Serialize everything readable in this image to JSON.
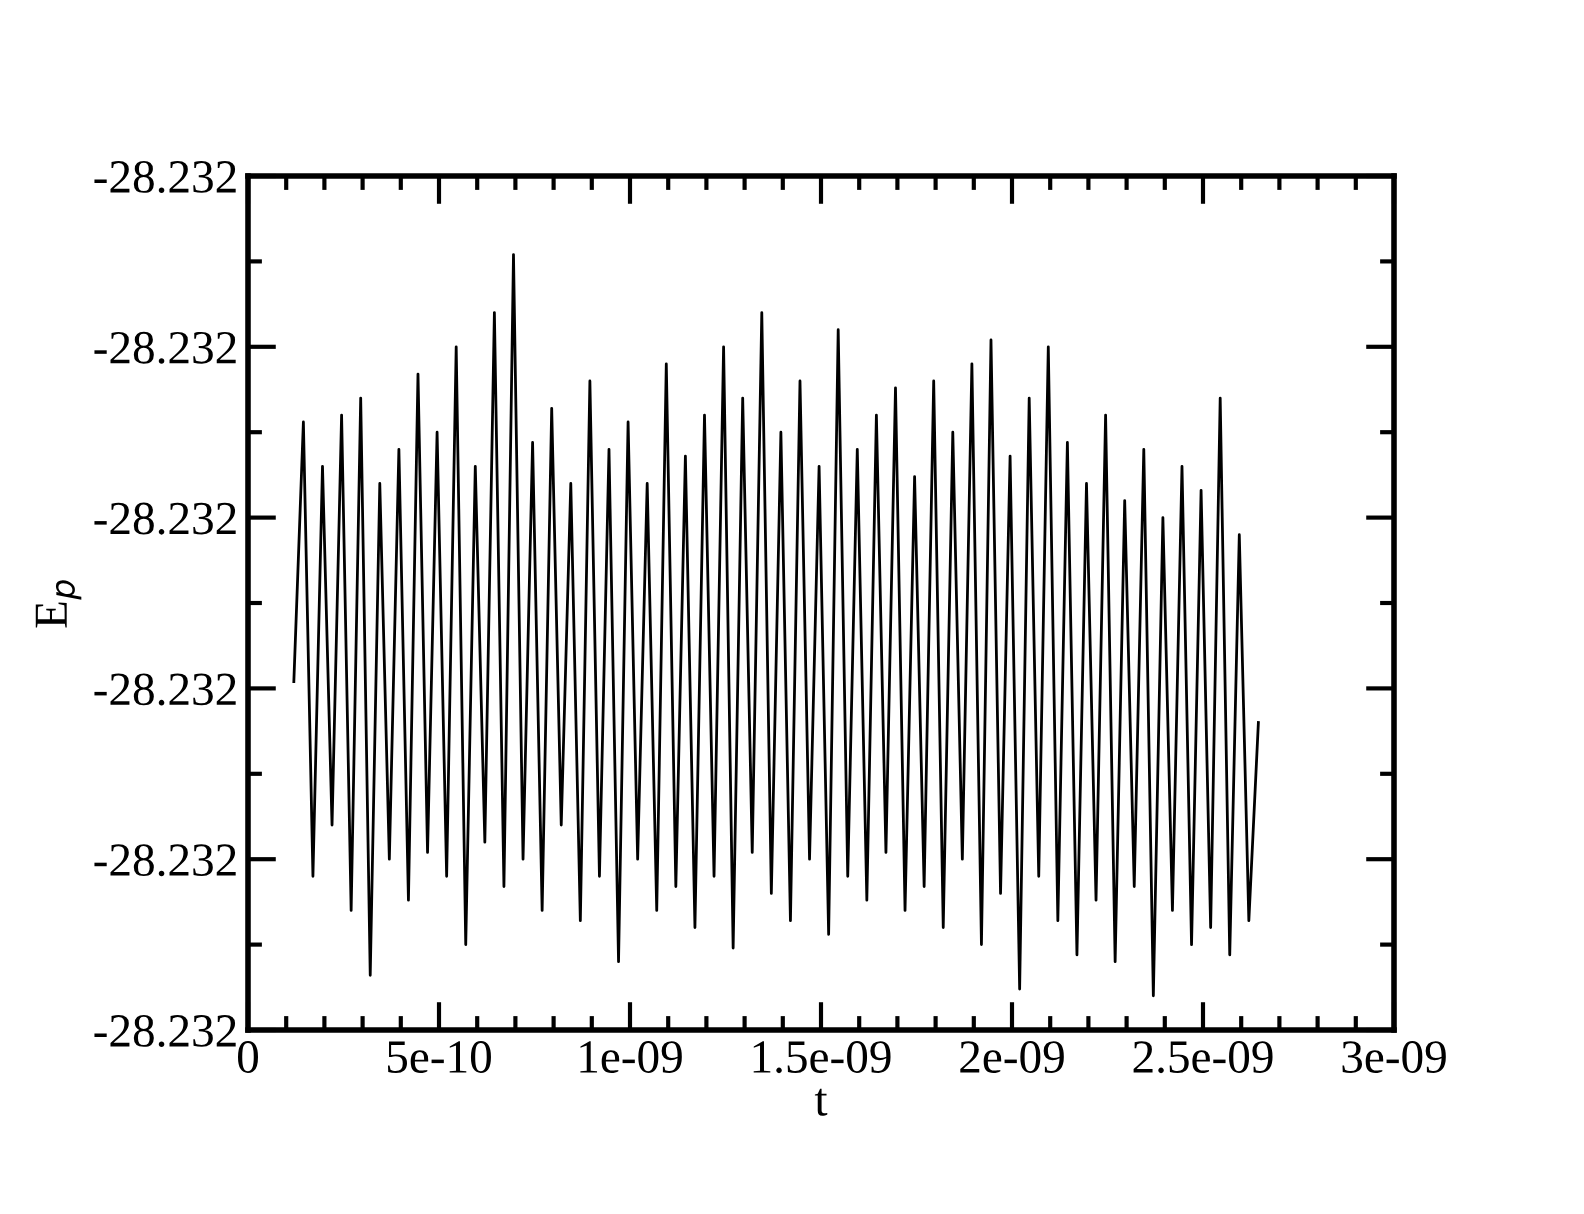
{
  "chart_data": {
    "type": "line",
    "xlabel": "t",
    "ylabel": "E$_{p}$",
    "x": [
      1.2e-10,
      1.45e-10,
      1.7e-10,
      1.95e-10,
      2.2e-10,
      2.45e-10,
      2.7e-10,
      2.95e-10,
      3.2e-10,
      3.45e-10,
      3.7e-10,
      3.95e-10,
      4.2e-10,
      4.45e-10,
      4.7e-10,
      4.95e-10,
      5.2e-10,
      5.45e-10,
      5.7e-10,
      5.95e-10,
      6.2e-10,
      6.45e-10,
      6.7e-10,
      6.95e-10,
      7.2e-10,
      7.45e-10,
      7.7e-10,
      7.95e-10,
      8.2e-10,
      8.45e-10,
      8.7e-10,
      8.95e-10,
      9.2e-10,
      9.45e-10,
      9.7e-10,
      9.95e-10,
      1.02e-09,
      1.045e-09,
      1.07e-09,
      1.095e-09,
      1.12e-09,
      1.145e-09,
      1.17e-09,
      1.195e-09,
      1.22e-09,
      1.245e-09,
      1.27e-09,
      1.295e-09,
      1.32e-09,
      1.345e-09,
      1.37e-09,
      1.395e-09,
      1.42e-09,
      1.445e-09,
      1.47e-09,
      1.495e-09,
      1.52e-09,
      1.545e-09,
      1.57e-09,
      1.595e-09,
      1.62e-09,
      1.645e-09,
      1.67e-09,
      1.695e-09,
      1.72e-09,
      1.745e-09,
      1.77e-09,
      1.795e-09,
      1.82e-09,
      1.845e-09,
      1.87e-09,
      1.895e-09,
      1.92e-09,
      1.945e-09,
      1.97e-09,
      1.995e-09,
      2.02e-09,
      2.045e-09,
      2.07e-09,
      2.095e-09,
      2.12e-09,
      2.145e-09,
      2.17e-09,
      2.195e-09,
      2.22e-09,
      2.245e-09,
      2.27e-09,
      2.295e-09,
      2.32e-09,
      2.345e-09,
      2.37e-09,
      2.395e-09,
      2.42e-09,
      2.445e-09,
      2.47e-09,
      2.495e-09,
      2.52e-09,
      2.545e-09,
      2.57e-09,
      2.595e-09,
      2.62e-09,
      2.645e-09
    ],
    "series": [
      {
        "color": "#000000",
        "values": [
          -28.232148,
          -28.232072,
          -28.232205,
          -28.232085,
          -28.23219,
          -28.23207,
          -28.232215,
          -28.232065,
          -28.232234,
          -28.23209,
          -28.2322,
          -28.23208,
          -28.232212,
          -28.232058,
          -28.232198,
          -28.232075,
          -28.232205,
          -28.23205,
          -28.232225,
          -28.232085,
          -28.232195,
          -28.23204,
          -28.232208,
          -28.232023,
          -28.2322,
          -28.232078,
          -28.232215,
          -28.232068,
          -28.23219,
          -28.23209,
          -28.232218,
          -28.23206,
          -28.232205,
          -28.23208,
          -28.23223,
          -28.232072,
          -28.2322,
          -28.23209,
          -28.232215,
          -28.232055,
          -28.232208,
          -28.232082,
          -28.23222,
          -28.23207,
          -28.232205,
          -28.23205,
          -28.232226,
          -28.232065,
          -28.232198,
          -28.23204,
          -28.23221,
          -28.232075,
          -28.232218,
          -28.23206,
          -28.2322,
          -28.232085,
          -28.232222,
          -28.232045,
          -28.232205,
          -28.23208,
          -28.232212,
          -28.23207,
          -28.232198,
          -28.232062,
          -28.232215,
          -28.232088,
          -28.232208,
          -28.23206,
          -28.23222,
          -28.232075,
          -28.2322,
          -28.232055,
          -28.232225,
          -28.232048,
          -28.23221,
          -28.232082,
          -28.232238,
          -28.232065,
          -28.232205,
          -28.23205,
          -28.232218,
          -28.232078,
          -28.232228,
          -28.23209,
          -28.232212,
          -28.23207,
          -28.23223,
          -28.232095,
          -28.232208,
          -28.23208,
          -28.23224,
          -28.2321,
          -28.232215,
          -28.232085,
          -28.232225,
          -28.232092,
          -28.23222,
          -28.232065,
          -28.232228,
          -28.232105,
          -28.232218,
          -28.23216
        ]
      }
    ],
    "xlim": [
      0,
      3e-09
    ],
    "xticks": [
      {
        "value": 0,
        "label": "0"
      },
      {
        "value": 1e-10,
        "label": null
      },
      {
        "value": 2e-10,
        "label": null
      },
      {
        "value": 3e-10,
        "label": null
      },
      {
        "value": 4e-10,
        "label": null
      },
      {
        "value": 5e-10,
        "label": "5e-10"
      },
      {
        "value": 6e-10,
        "label": null
      },
      {
        "value": 7e-10,
        "label": null
      },
      {
        "value": 8e-10,
        "label": null
      },
      {
        "value": 9e-10,
        "label": null
      },
      {
        "value": 1e-09,
        "label": "1e-09"
      },
      {
        "value": 1.1e-09,
        "label": null
      },
      {
        "value": 1.2e-09,
        "label": null
      },
      {
        "value": 1.3e-09,
        "label": null
      },
      {
        "value": 1.4e-09,
        "label": null
      },
      {
        "value": 1.5e-09,
        "label": "1.5e-09"
      },
      {
        "value": 1.6e-09,
        "label": null
      },
      {
        "value": 1.7e-09,
        "label": null
      },
      {
        "value": 1.8e-09,
        "label": null
      },
      {
        "value": 1.9e-09,
        "label": null
      },
      {
        "value": 2e-09,
        "label": "2e-09"
      },
      {
        "value": 2.1e-09,
        "label": null
      },
      {
        "value": 2.2e-09,
        "label": null
      },
      {
        "value": 2.3e-09,
        "label": null
      },
      {
        "value": 2.4e-09,
        "label": null
      },
      {
        "value": 2.5e-09,
        "label": "2.5e-09"
      },
      {
        "value": 2.6e-09,
        "label": null
      },
      {
        "value": 2.7e-09,
        "label": null
      },
      {
        "value": 2.8e-09,
        "label": null
      },
      {
        "value": 2.9e-09,
        "label": null
      },
      {
        "value": 3e-09,
        "label": "3e-09"
      }
    ],
    "ylim": [
      -28.23225,
      -28.232
    ],
    "yticks": [
      {
        "value": -28.23225,
        "label": "-28.232"
      },
      {
        "value": -28.232225,
        "label": null
      },
      {
        "value": -28.2322,
        "label": "-28.232"
      },
      {
        "value": -28.232175,
        "label": null
      },
      {
        "value": -28.23215,
        "label": "-28.232"
      },
      {
        "value": -28.232125,
        "label": null
      },
      {
        "value": -28.2321,
        "label": "-28.232"
      },
      {
        "value": -28.232075,
        "label": null
      },
      {
        "value": -28.23205,
        "label": "-28.232"
      },
      {
        "value": -28.232025,
        "label": null
      },
      {
        "value": -28.232,
        "label": "-28.232"
      }
    ],
    "grid": false,
    "legend": false,
    "marker": "none",
    "line_style": "solid"
  }
}
